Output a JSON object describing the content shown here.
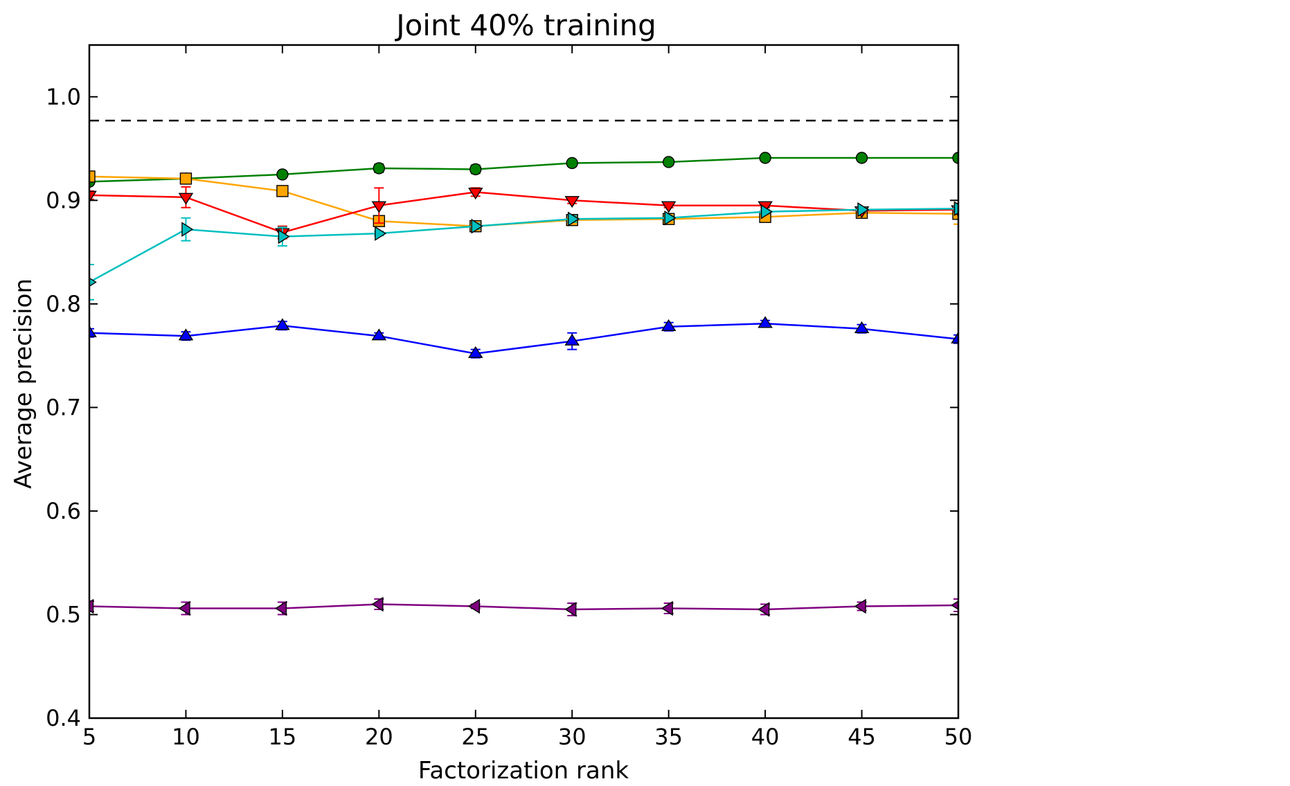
{
  "chart_data": {
    "type": "line",
    "title": "Joint 40% training",
    "xlabel": "Factorization rank",
    "ylabel": "Average precision",
    "xlim": [
      5,
      50
    ],
    "ylim": [
      0.4,
      1.05
    ],
    "xticks": [
      5,
      10,
      15,
      20,
      25,
      30,
      35,
      40,
      45,
      50
    ],
    "yticks": [
      0.4,
      0.5,
      0.6,
      0.7,
      0.8,
      0.9,
      1.0
    ],
    "xtick_labels": [
      "5",
      "10",
      "15",
      "20",
      "25",
      "30",
      "35",
      "40",
      "45",
      "50"
    ],
    "ytick_labels": [
      "0.4",
      "0.5",
      "0.6",
      "0.7",
      "0.8",
      "0.9",
      "1.0"
    ],
    "grid": false,
    "legend": "none",
    "x": [
      5,
      10,
      15,
      20,
      25,
      30,
      35,
      40,
      45,
      50
    ],
    "reference_line": {
      "y": 0.977,
      "style": "dashed",
      "color": "#000000"
    },
    "series": [
      {
        "color": "#008000",
        "marker": "circle",
        "values": [
          0.918,
          0.921,
          0.925,
          0.931,
          0.93,
          0.936,
          0.937,
          0.941,
          0.941,
          0.941
        ],
        "errors": [
          0.003,
          0.003,
          0.002,
          0.004,
          0.004,
          0.003,
          0.002,
          0.002,
          0.002,
          0.002
        ]
      },
      {
        "color": "#ffa500",
        "marker": "square",
        "values": [
          0.923,
          0.921,
          0.909,
          0.88,
          0.875,
          0.881,
          0.882,
          0.884,
          0.888,
          0.887
        ],
        "errors": [
          0.003,
          0.005,
          0.003,
          0.003,
          0.002,
          0.003,
          0.002,
          0.003,
          0.003,
          0.01
        ]
      },
      {
        "color": "#ff0000",
        "marker": "triangle-down",
        "values": [
          0.905,
          0.903,
          0.869,
          0.895,
          0.908,
          0.9,
          0.895,
          0.895,
          0.89,
          0.891
        ],
        "errors": [
          0.004,
          0.01,
          0.006,
          0.017,
          0.004,
          0.003,
          0.002,
          0.002,
          0.002,
          0.002
        ]
      },
      {
        "color": "#00bfbf",
        "marker": "triangle-right",
        "values": [
          0.821,
          0.872,
          0.865,
          0.868,
          0.875,
          0.882,
          0.883,
          0.889,
          0.891,
          0.892
        ],
        "errors": [
          0.017,
          0.011,
          0.009,
          0.002,
          0.003,
          0.003,
          0.002,
          0.002,
          0.002,
          0.002
        ]
      },
      {
        "color": "#0000ff",
        "marker": "triangle-up",
        "values": [
          0.772,
          0.769,
          0.779,
          0.769,
          0.752,
          0.764,
          0.778,
          0.781,
          0.776,
          0.766
        ],
        "errors": [
          0.004,
          0.004,
          0.004,
          0.003,
          0.004,
          0.008,
          0.004,
          0.003,
          0.004,
          0.004
        ]
      },
      {
        "color": "#800080",
        "marker": "triangle-left",
        "values": [
          0.508,
          0.506,
          0.506,
          0.51,
          0.508,
          0.505,
          0.506,
          0.505,
          0.508,
          0.509
        ],
        "errors": [
          0.005,
          0.006,
          0.006,
          0.005,
          0.002,
          0.006,
          0.005,
          0.005,
          0.004,
          0.006
        ]
      }
    ]
  }
}
